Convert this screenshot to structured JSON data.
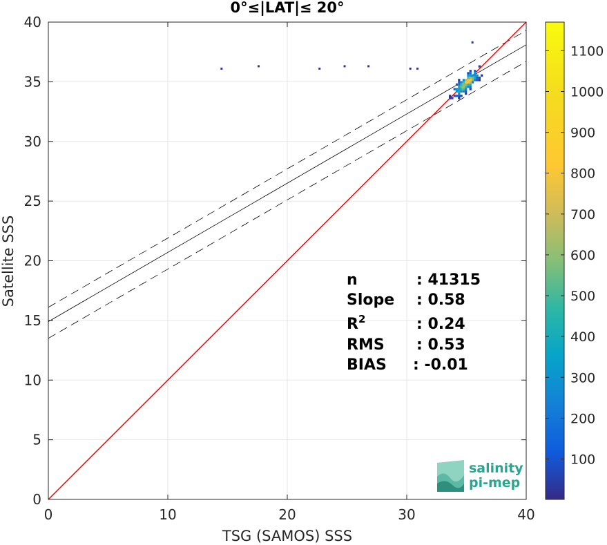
{
  "chart_data": {
    "type": "scatter",
    "title": "0°≤|LAT|≤ 20°",
    "xlabel": "TSG (SAMOS) SSS",
    "ylabel": "Satellite SSS",
    "xlim": [
      0,
      40
    ],
    "ylim": [
      0,
      40
    ],
    "xticks": [
      "0",
      "10",
      "20",
      "30",
      "40"
    ],
    "yticks": [
      "0",
      "5",
      "10",
      "15",
      "20",
      "25",
      "30",
      "35",
      "40"
    ],
    "grid": true,
    "colorbar": {
      "range": [
        1,
        1170
      ],
      "ticks": [
        "100",
        "200",
        "300",
        "400",
        "500",
        "600",
        "700",
        "800",
        "900",
        "1000",
        "1100"
      ],
      "colormap": "parula"
    },
    "lines": {
      "identity": {
        "slope": 1,
        "intercept": 0,
        "color": "#ff0000"
      },
      "fit": {
        "slope": 0.58,
        "intercept": 14.9,
        "color": "#000000"
      },
      "fit_upper": {
        "slope": 0.58,
        "intercept": 16.1,
        "color": "#000000",
        "style": "dashed"
      },
      "fit_lower": {
        "slope": 0.58,
        "intercept": 13.5,
        "color": "#000000",
        "style": "dashed"
      }
    },
    "outliers": [
      {
        "x": 14.5,
        "y": 36.1
      },
      {
        "x": 17.6,
        "y": 36.3
      },
      {
        "x": 22.7,
        "y": 36.1
      },
      {
        "x": 24.8,
        "y": 36.3
      },
      {
        "x": 26.8,
        "y": 36.3
      },
      {
        "x": 30.3,
        "y": 36.1
      },
      {
        "x": 30.9,
        "y": 36.1
      },
      {
        "x": 35.5,
        "y": 38.3
      }
    ],
    "cluster": {
      "center_x": 35.0,
      "center_y": 34.9,
      "peak": 1170
    },
    "stats": [
      {
        "label": "n",
        "value": ": 41315"
      },
      {
        "label": "Slope",
        "value": ": 0.58"
      },
      {
        "label": "R",
        "sup": "2",
        "value": ": 0.24"
      },
      {
        "label": "RMS",
        "value": ": 0.53"
      },
      {
        "label": "BIAS",
        "value": ": -0.01"
      }
    ]
  },
  "logo": {
    "line1": "salinity",
    "line2": "pi-mep",
    "color": "#2aa58f"
  }
}
